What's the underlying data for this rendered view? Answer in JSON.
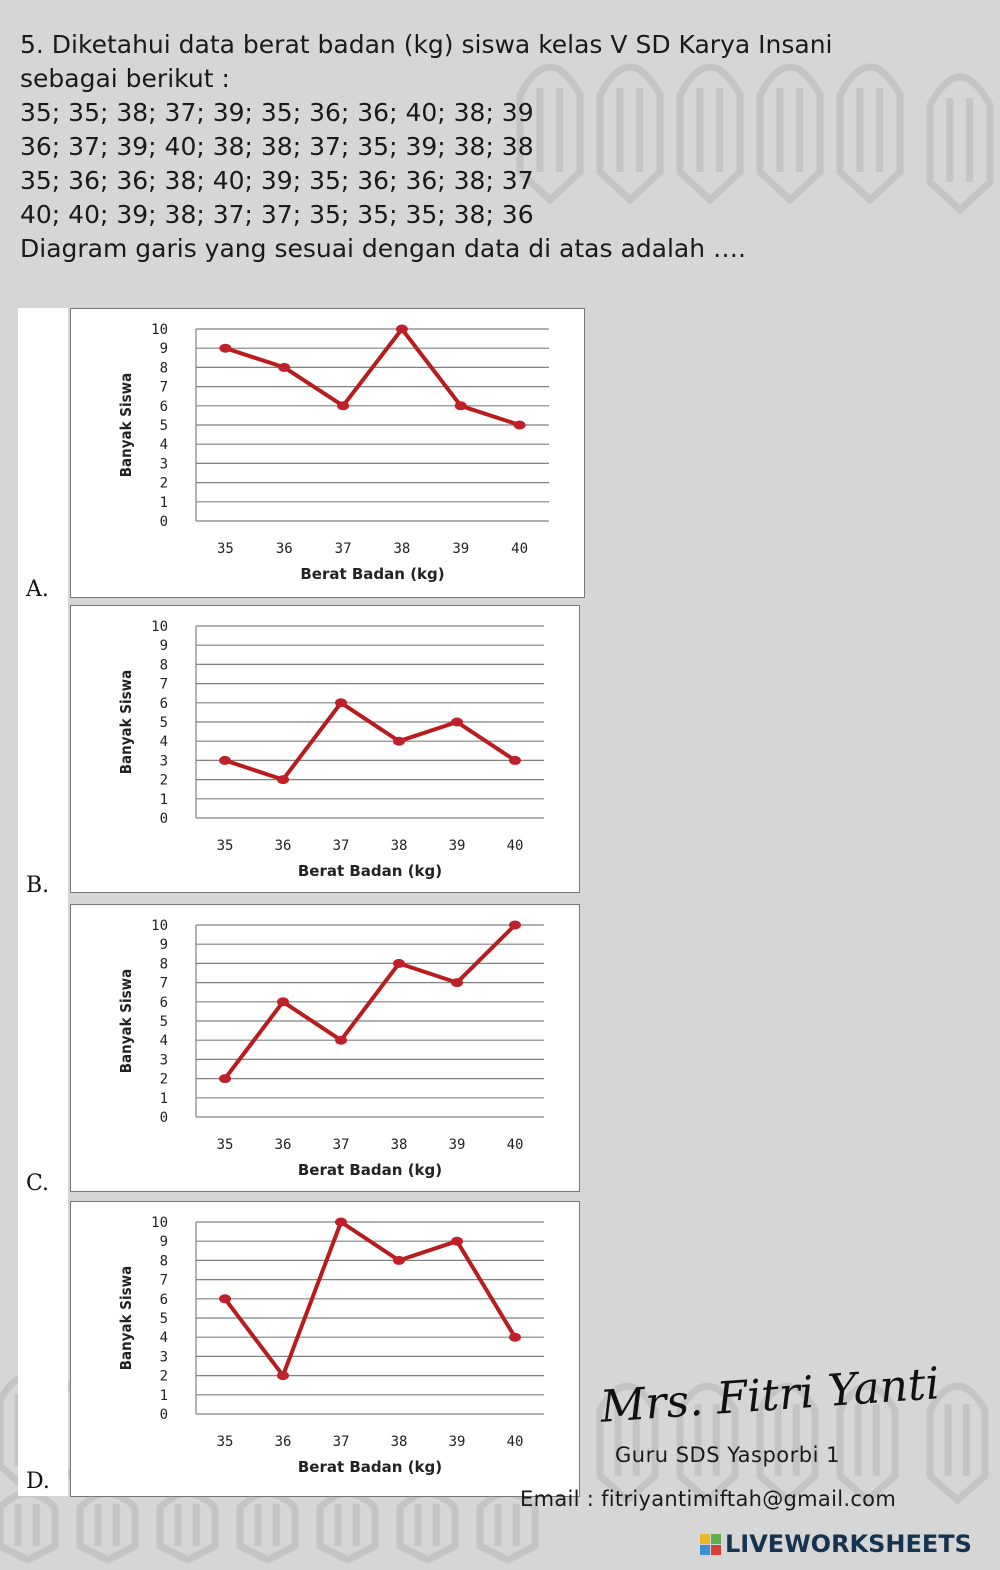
{
  "question": {
    "lines": [
      "5. Diketahui data berat badan (kg) siswa kelas V SD Karya Insani",
      "sebagai berikut :",
      "35; 35; 38; 37; 39; 35; 36; 36; 40; 38; 39",
      "36; 37; 39; 40; 38; 38; 37; 35; 39; 38; 38",
      "35; 36; 36; 38; 40; 39; 35; 36; 36; 38; 37",
      "40; 40; 39; 38; 37; 37; 35; 35; 35; 38; 36",
      "Diagram garis yang sesuai dengan data di atas adalah …."
    ]
  },
  "colors": {
    "line": "#b81c1c",
    "point": "#c0202a",
    "grid": "#808080",
    "axis_text": "#222222",
    "background": "#d6d6d6",
    "watermark": "#bdbdbd"
  },
  "chart_data": [
    {
      "type": "line",
      "option": "A.",
      "categories": [
        "35",
        "36",
        "37",
        "38",
        "39",
        "40"
      ],
      "values": [
        9,
        8,
        6,
        10,
        6,
        5
      ],
      "xlabel": "Berat Badan  (kg)",
      "ylabel": "Banyak Siswa",
      "ylim": [
        0,
        10
      ],
      "yticks": [
        0,
        1,
        2,
        3,
        4,
        5,
        6,
        7,
        8,
        9,
        10
      ],
      "grid": true
    },
    {
      "type": "line",
      "option": "B.",
      "categories": [
        "35",
        "36",
        "37",
        "38",
        "39",
        "40"
      ],
      "values": [
        3,
        2,
        6,
        4,
        5,
        3
      ],
      "xlabel": "Berat Badan  (kg)",
      "ylabel": "Banyak Siswa",
      "ylim": [
        0,
        10
      ],
      "yticks": [
        0,
        1,
        2,
        3,
        4,
        5,
        6,
        7,
        8,
        9,
        10
      ],
      "grid": true
    },
    {
      "type": "line",
      "option": "C.",
      "categories": [
        "35",
        "36",
        "37",
        "38",
        "39",
        "40"
      ],
      "values": [
        2,
        6,
        4,
        8,
        7,
        10
      ],
      "xlabel": "Berat Badan  (kg)",
      "ylabel": "Banyak Siswa",
      "ylim": [
        0,
        10
      ],
      "yticks": [
        0,
        1,
        2,
        3,
        4,
        5,
        6,
        7,
        8,
        9,
        10
      ],
      "grid": true
    },
    {
      "type": "line",
      "option": "D.",
      "categories": [
        "35",
        "36",
        "37",
        "38",
        "39",
        "40"
      ],
      "values": [
        6,
        2,
        10,
        8,
        9,
        4
      ],
      "xlabel": "Berat Badan  (kg)",
      "ylabel": "Banyak Siswa",
      "ylim": [
        0,
        10
      ],
      "yticks": [
        0,
        1,
        2,
        3,
        4,
        5,
        6,
        7,
        8,
        9,
        10
      ],
      "grid": true
    }
  ],
  "footer": {
    "signature": "Mrs. Fitri Yanti",
    "school": "Guru SDS Yasporbi 1",
    "email": "Email  :  fitriyantimiftah@gmail.com",
    "brand": "LIVEWORKSHEETS"
  }
}
